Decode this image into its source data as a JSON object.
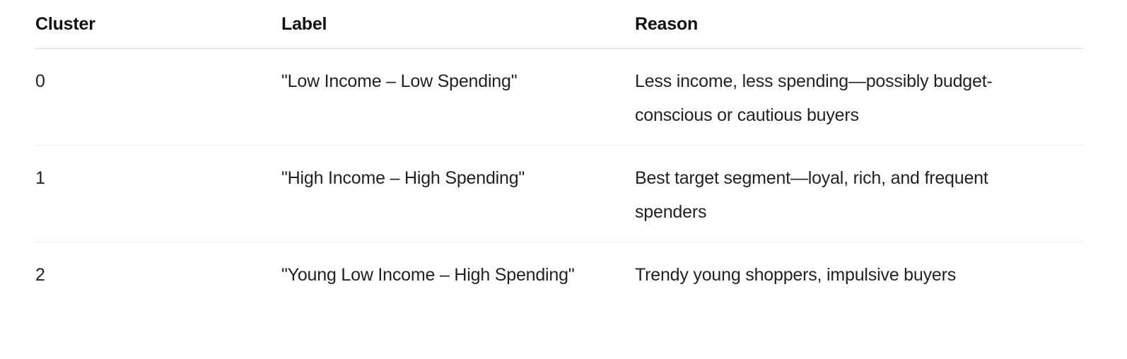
{
  "table": {
    "headers": {
      "cluster": "Cluster",
      "label": "Label",
      "reason": "Reason"
    },
    "rows": [
      {
        "cluster": "0",
        "label": "\"Low Income – Low Spending\"",
        "reason": "Less income, less spending—possibly budget-conscious or cautious buyers"
      },
      {
        "cluster": "1",
        "label": "\"High Income – High Spending\"",
        "reason": "Best target segment—loyal, rich, and frequent spenders"
      },
      {
        "cluster": "2",
        "label": "\"Young Low Income – High Spending\"",
        "reason": "Trendy young shoppers, impulsive buyers"
      }
    ]
  }
}
